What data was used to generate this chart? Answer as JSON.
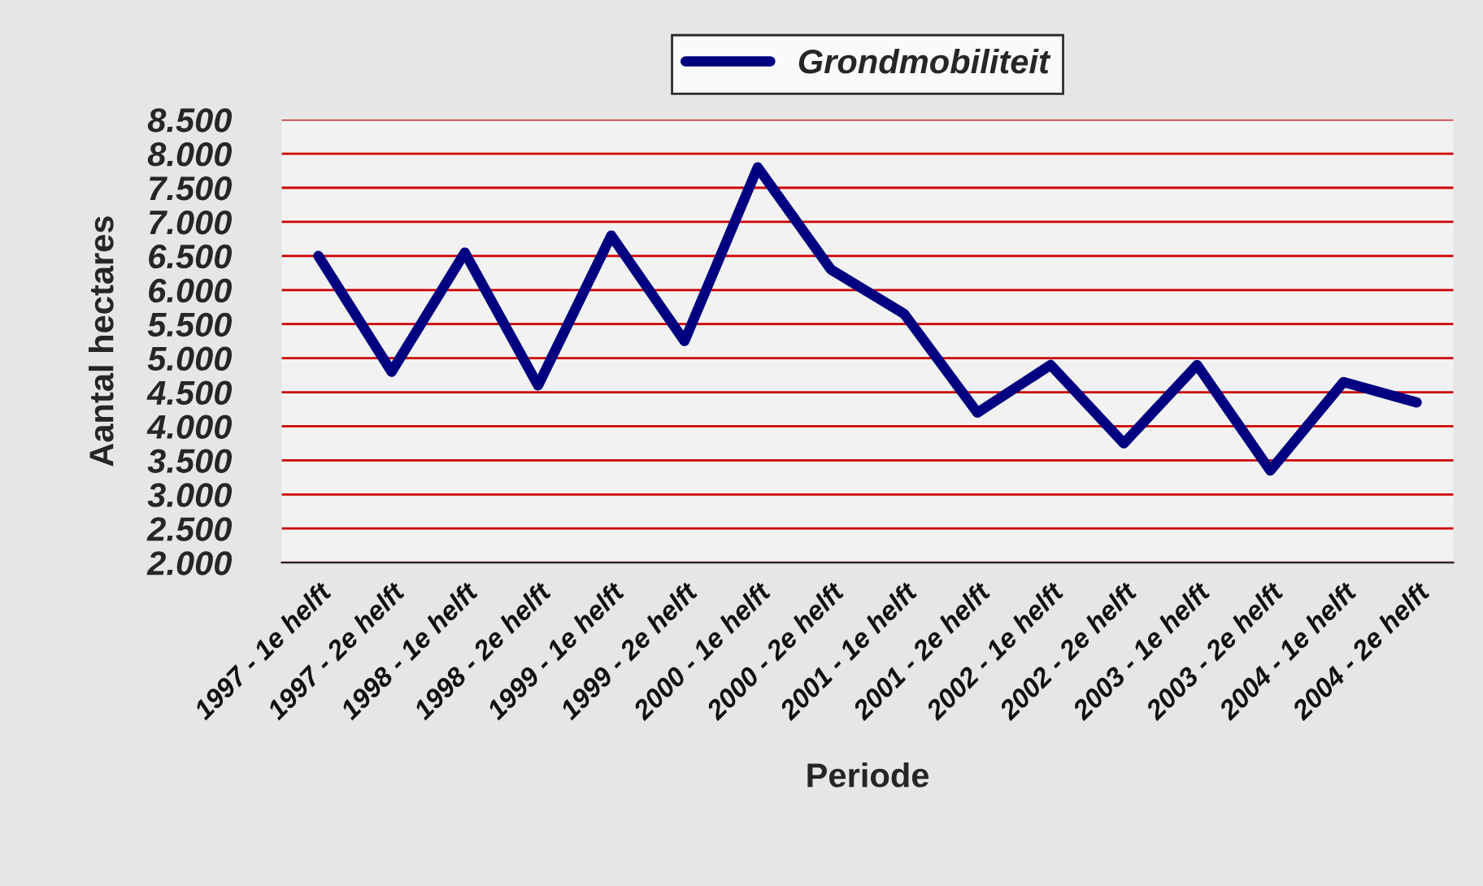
{
  "chart_data": {
    "type": "line",
    "xlabel": "Periode",
    "ylabel": "Aantal hectares",
    "categories": [
      "1997 - 1e helft",
      "1997 - 2e helft",
      "1998 - 1e helft",
      "1998 - 2e helft",
      "1999 - 1e helft",
      "1999 - 2e helft",
      "2000 - 1e helft",
      "2000 - 2e helft",
      "2001 - 1e helft",
      "2001 - 2e helft",
      "2002 - 1e helft",
      "2002 - 2e helft",
      "2003 - 1e helft",
      "2003 - 2e helft",
      "2004 - 1e helft",
      "2004 - 2e helft"
    ],
    "series": [
      {
        "name": "Grondmobiliteit",
        "color": "#000080",
        "values": [
          6500,
          4800,
          6550,
          4600,
          6800,
          5250,
          7800,
          6300,
          5650,
          4200,
          4900,
          3750,
          4900,
          3350,
          4650,
          4350
        ]
      }
    ],
    "ylim": [
      2000,
      8500
    ],
    "yticks": [
      {
        "value": 2000,
        "label": "2.000"
      },
      {
        "value": 2500,
        "label": "2.500"
      },
      {
        "value": 3000,
        "label": "3.000"
      },
      {
        "value": 3500,
        "label": "3.500"
      },
      {
        "value": 4000,
        "label": "4.000"
      },
      {
        "value": 4500,
        "label": "4.500"
      },
      {
        "value": 5000,
        "label": "5.000"
      },
      {
        "value": 5500,
        "label": "5.500"
      },
      {
        "value": 6000,
        "label": "6.000"
      },
      {
        "value": 6500,
        "label": "6.500"
      },
      {
        "value": 7000,
        "label": "7.000"
      },
      {
        "value": 7500,
        "label": "7.500"
      },
      {
        "value": 8000,
        "label": "8.000"
      },
      {
        "value": 8500,
        "label": "8.500"
      }
    ],
    "grid": "y",
    "legend": "top",
    "marker": "none",
    "line_style": "solid"
  }
}
